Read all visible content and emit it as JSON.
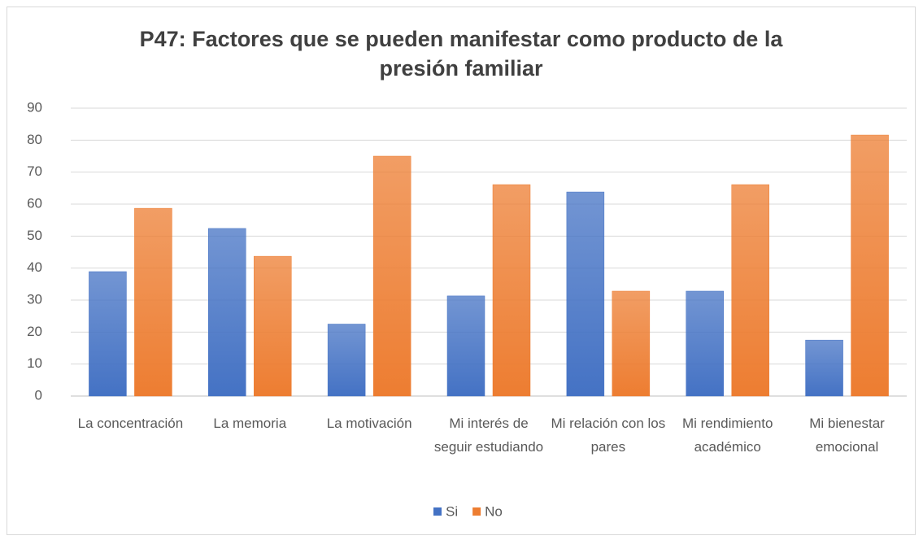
{
  "chart_data": {
    "type": "bar",
    "title": "P47: Factores que se pueden manifestar como producto de la presión familiar",
    "categories": [
      "La concentración",
      "La memoria",
      "La motivación",
      "Mi interés de seguir estudiando",
      "Mi relación con los pares",
      "Mi rendimiento académico",
      "Mi bienestar emocional"
    ],
    "series": [
      {
        "name": "Si",
        "color": "#4472c4",
        "values": [
          38.9,
          52.4,
          22.5,
          31.3,
          63.8,
          32.8,
          17.5
        ]
      },
      {
        "name": "No",
        "color": "#ed7d31",
        "values": [
          58.7,
          43.7,
          75,
          66.1,
          32.8,
          66.1,
          81.6
        ]
      }
    ],
    "ylim": [
      0,
      90
    ],
    "yticks": [
      0,
      10,
      20,
      30,
      40,
      50,
      60,
      70,
      80,
      90
    ],
    "grid": true,
    "legend": "bottom"
  }
}
